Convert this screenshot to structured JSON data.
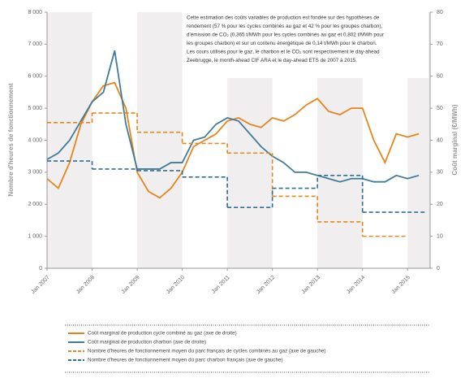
{
  "chart_data": {
    "type": "line",
    "y_label": "Nombre d'heures de fonctionnement",
    "y2_label": "Coût marginal (€/MWh)",
    "annotation": [
      "Cette estimation des coûts variables de production est fondée sur des hypothèses de",
      "rendement (57 % pour les cycles combinés au gaz et 42 % pour les groupes charbon),",
      "d'émission de CO₂ (0,365 t/MWh pour les cycles combinés au gaz et 0,802 t/MWh pour",
      "les groupes charbon) et sur un contenu énergétique de 0,14 t/MWh pour le charbon.",
      "Les cours utilisés pour le gaz, le charbon et le CO₂ sont respectivement le day-ahead",
      "Zeebrugge, le month-ahead CIF ARA et le day-ahead ETS de 2007 à 2015."
    ],
    "xlim": [
      2007,
      2015.5
    ],
    "xticks": [
      {
        "value": 2007,
        "label": "Jan 2007"
      },
      {
        "value": 2008,
        "label": "Jan 2008"
      },
      {
        "value": 2009,
        "label": "Jan 2009"
      },
      {
        "value": 2010,
        "label": "Jan 2010"
      },
      {
        "value": 2011,
        "label": "Jan 2011"
      },
      {
        "value": 2012,
        "label": "Jan 2012"
      },
      {
        "value": 2013,
        "label": "Jan 2013"
      },
      {
        "value": 2014,
        "label": "Jan 2014"
      },
      {
        "value": 2015,
        "label": "Jan 2015"
      }
    ],
    "ylim": [
      0,
      8000
    ],
    "yticks": [
      0,
      {
        "value": 1000,
        "label": "1 000"
      },
      {
        "value": 2000,
        "label": "2 000"
      },
      {
        "value": 3000,
        "label": "3 000"
      },
      {
        "value": 4000,
        "label": "4 000"
      },
      {
        "value": 5000,
        "label": "5 000"
      },
      {
        "value": 6000,
        "label": "6 000"
      },
      {
        "value": 7000,
        "label": "7 000"
      },
      {
        "value": 8000,
        "label": "8 000"
      }
    ],
    "y2lim": [
      0,
      80
    ],
    "y2ticks": [
      0,
      10,
      20,
      30,
      40,
      50,
      60,
      70,
      80
    ],
    "series": [
      {
        "name": "Coût marginal de production cycle combiné au gaz (axe de droite)",
        "color": "#e8841a",
        "axis": "y2",
        "dash": false,
        "step": false,
        "x": [
          2007,
          2007.25,
          2007.5,
          2007.75,
          2008,
          2008.25,
          2008.5,
          2008.75,
          2009,
          2009.25,
          2009.5,
          2009.75,
          2010,
          2010.25,
          2010.5,
          2010.75,
          2011,
          2011.25,
          2011.5,
          2011.75,
          2012,
          2012.25,
          2012.5,
          2012.75,
          2013,
          2013.25,
          2013.5,
          2013.75,
          2014,
          2014.25,
          2014.5,
          2014.75,
          2015,
          2015.25
        ],
        "values": [
          28,
          25,
          33,
          45,
          52,
          57,
          58,
          50,
          30,
          24,
          22,
          25,
          30,
          38,
          40,
          42,
          46,
          47,
          45,
          44,
          47,
          46,
          48,
          51,
          53,
          49,
          48,
          50,
          50,
          40,
          33,
          42,
          41,
          42
        ]
      },
      {
        "name": "Coût marginal de production charbon (axe de droite)",
        "color": "#3f7c9c",
        "axis": "y2",
        "dash": false,
        "step": false,
        "x": [
          2007,
          2007.25,
          2007.5,
          2007.75,
          2008,
          2008.25,
          2008.5,
          2008.75,
          2009,
          2009.25,
          2009.5,
          2009.75,
          2010,
          2010.25,
          2010.5,
          2010.75,
          2011,
          2011.25,
          2011.5,
          2011.75,
          2012,
          2012.25,
          2012.5,
          2012.75,
          2013,
          2013.25,
          2013.5,
          2013.75,
          2014,
          2014.25,
          2014.5,
          2014.75,
          2015,
          2015.25
        ],
        "values": [
          34,
          36,
          40,
          46,
          52,
          55,
          68,
          45,
          31,
          31,
          31,
          33,
          33,
          40,
          41,
          45,
          47,
          46,
          42,
          38,
          35,
          33,
          30,
          30,
          29,
          28,
          27,
          28,
          28,
          27,
          27,
          29,
          28,
          29
        ]
      },
      {
        "name": "Nombre d'heures de fonctionnement moyen du parc français de cycles combinés au gaz (axe de gauche)",
        "color": "#e08a20",
        "axis": "y",
        "dash": true,
        "step": true,
        "x": [
          2007,
          2008,
          2009,
          2010,
          2011,
          2012,
          2013,
          2014
        ],
        "values": [
          4550,
          4850,
          4250,
          3900,
          3600,
          2250,
          1450,
          1000
        ]
      },
      {
        "name": "Nombre d'heures de fonctionnement moyen du parc charbon français (axe de gauche)",
        "color": "#2e6f96",
        "axis": "y",
        "dash": true,
        "step": true,
        "x": [
          2007,
          2008,
          2009,
          2010,
          2011,
          2012,
          2013,
          2014,
          2015
        ],
        "values": [
          3350,
          3100,
          3050,
          2850,
          1900,
          2500,
          2900,
          1750,
          1750
        ]
      }
    ]
  }
}
